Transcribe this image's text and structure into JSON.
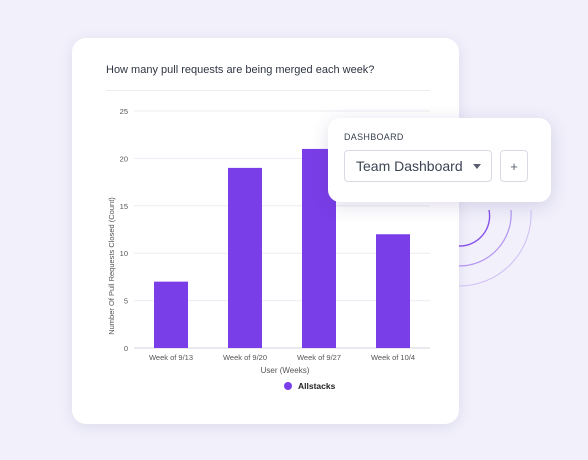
{
  "accent_color": "#7a3ee8",
  "dashboard": {
    "label": "DASHBOARD",
    "selected": "Team Dashboard",
    "add_label": "+",
    "caret_icon": "chevron-down-icon"
  },
  "chart_data": {
    "type": "bar",
    "title": "How many pull requests are being merged each week?",
    "xlabel": "User (Weeks)",
    "ylabel": "Number Of Pull Requests Closed (Count)",
    "categories": [
      "Week of 9/13",
      "Week of 9/20",
      "Week of 9/27",
      "Week of 10/4"
    ],
    "series": [
      {
        "name": "Allstacks",
        "values": [
          7,
          19,
          21,
          12
        ],
        "color": "#7a3ee8"
      }
    ],
    "ylim": [
      0,
      25
    ],
    "yticks": [
      0,
      5,
      10,
      15,
      20,
      25
    ],
    "grid": true,
    "legend": "bottom"
  }
}
